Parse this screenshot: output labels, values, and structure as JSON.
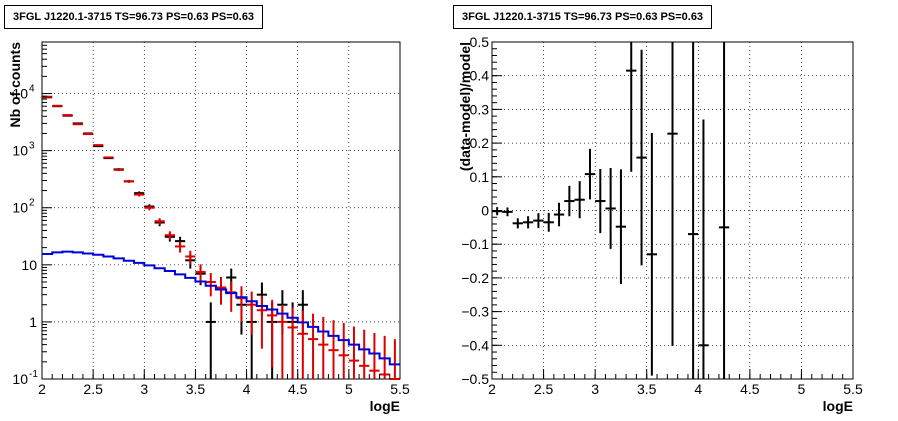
{
  "chart_data": [
    {
      "type": "scatter",
      "title": "3FGL J1220.1-3715 TS=96.73 PS=0.63 PS=0.63",
      "xlabel": "logE",
      "ylabel": "Nb of counts",
      "xlim": [
        2,
        5.5
      ],
      "ylim": [
        0.1,
        80000
      ],
      "yscale": "log",
      "grid": true,
      "x_ticks": [
        "2",
        "2.5",
        "3",
        "3.5",
        "4",
        "4.5",
        "5",
        "5.5"
      ],
      "y_ticks": [
        {
          "v": 0.1,
          "base": "10",
          "exp": "-1"
        },
        {
          "v": 1,
          "base": "1",
          "exp": ""
        },
        {
          "v": 10,
          "base": "10",
          "exp": ""
        },
        {
          "v": 100,
          "base": "10",
          "exp": "2"
        },
        {
          "v": 1000,
          "base": "10",
          "exp": "3"
        },
        {
          "v": 10000,
          "base": "10",
          "exp": "4"
        }
      ],
      "colors": {
        "data": "#000000",
        "model": "#dd0000",
        "background": "#0000dd"
      },
      "series": [
        {
          "style": "errorbar",
          "color": "#000000",
          "x": [
            2.05,
            2.15,
            2.25,
            2.35,
            2.45,
            2.55,
            2.65,
            2.75,
            2.85,
            2.95,
            3.05,
            3.15,
            3.25,
            3.35,
            3.45,
            3.55,
            3.65,
            3.75,
            3.85,
            3.95,
            4.05,
            4.15,
            4.25,
            4.35,
            4.45,
            4.55
          ],
          "y": [
            8600,
            6000,
            4100,
            3000,
            2000,
            1200,
            740,
            470,
            290,
            180,
            105,
            55,
            31,
            26,
            12,
            7,
            1,
            4,
            6,
            2,
            1,
            3,
            1,
            2,
            1,
            2
          ],
          "yerr_low": [
            90,
            80,
            65,
            55,
            45,
            35,
            27,
            22,
            17,
            13,
            10,
            7.5,
            5.5,
            5,
            3.4,
            2.6,
            0.9,
            1.9,
            2.4,
            1.4,
            0.9,
            1.7,
            0.9,
            1.4,
            0.9,
            1.4
          ],
          "yerr_high": [
            90,
            80,
            65,
            55,
            45,
            35,
            27,
            22,
            17,
            13,
            10,
            7.5,
            5.5,
            5,
            3.4,
            2.6,
            1.2,
            2.1,
            2.6,
            1.6,
            1.2,
            1.9,
            1.2,
            1.6,
            1.2,
            1.6
          ]
        },
        {
          "style": "errorbar",
          "color": "#dd0000",
          "x": [
            2.05,
            2.15,
            2.25,
            2.35,
            2.45,
            2.55,
            2.65,
            2.75,
            2.85,
            2.95,
            3.05,
            3.15,
            3.25,
            3.35,
            3.45,
            3.55,
            3.65,
            3.75,
            3.85,
            3.95,
            4.05,
            4.15,
            4.25,
            4.35,
            4.45,
            4.55,
            4.65,
            4.75,
            4.85,
            4.95,
            5.05,
            5.15,
            5.25,
            5.35,
            5.45
          ],
          "y": [
            8800,
            6100,
            4200,
            2900,
            1950,
            1250,
            760,
            460,
            290,
            170,
            100,
            58,
            33,
            21,
            14,
            7.5,
            5,
            4,
            3.3,
            2.6,
            2,
            1.6,
            1.3,
            1,
            0.8,
            0.62,
            0.5,
            0.4,
            0.32,
            0.26,
            0.21,
            0.17,
            0.14,
            0.12,
            0.1
          ],
          "yerr_low": [
            95,
            80,
            65,
            55,
            45,
            35,
            28,
            21,
            17,
            13,
            10,
            7.6,
            5.7,
            4.6,
            3.7,
            2.7,
            2.2,
            2,
            1.8,
            1.6,
            1.4,
            1.26,
            1.14,
            1,
            0.79,
            0.61,
            0.49,
            0.39,
            0.31,
            0.25,
            0.2,
            0.16,
            0.13,
            0.11,
            0.09
          ],
          "yerr_high": [
            95,
            80,
            65,
            55,
            45,
            35,
            28,
            21,
            17,
            13,
            10,
            7.6,
            5.7,
            4.6,
            3.7,
            2.7,
            2.2,
            2,
            1.8,
            1.6,
            1.4,
            1.26,
            1.14,
            1,
            1,
            0.95,
            0.9,
            0.82,
            0.75,
            0.7,
            0.62,
            0.56,
            0.5,
            0.45,
            0.4
          ]
        },
        {
          "style": "step",
          "color": "#0000dd",
          "x": [
            2.05,
            2.15,
            2.25,
            2.35,
            2.45,
            2.55,
            2.65,
            2.75,
            2.85,
            2.95,
            3.05,
            3.15,
            3.25,
            3.35,
            3.45,
            3.55,
            3.65,
            3.75,
            3.85,
            3.95,
            4.05,
            4.15,
            4.25,
            4.35,
            4.45,
            4.55,
            4.65,
            4.75,
            4.85,
            4.95,
            5.05,
            5.15,
            5.25,
            5.35,
            5.45
          ],
          "y": [
            15.5,
            16.5,
            17,
            16.5,
            15.8,
            15,
            14,
            13,
            11.8,
            10.8,
            9.8,
            8.7,
            7.8,
            6.8,
            5.9,
            5.1,
            4.3,
            3.7,
            3.2,
            2.7,
            2.3,
            1.9,
            1.65,
            1.4,
            1.18,
            0.98,
            0.82,
            0.68,
            0.57,
            0.48,
            0.4,
            0.33,
            0.28,
            0.23,
            0.18
          ]
        }
      ]
    },
    {
      "type": "scatter",
      "title": "3FGL J1220.1-3715 TS=96.73 PS=0.63 PS=0.63",
      "xlabel": "logE",
      "ylabel": "(data-model)/model",
      "xlim": [
        2,
        5.5
      ],
      "ylim": [
        -0.5,
        0.5
      ],
      "grid": true,
      "x_ticks": [
        "2",
        "2.5",
        "3",
        "3.5",
        "4",
        "4.5",
        "5",
        "5.5"
      ],
      "y_ticks": [
        "−0.5",
        "−0.4",
        "−0.3",
        "−0.2",
        "−0.1",
        "0",
        "0.1",
        "0.2",
        "0.3",
        "0.4",
        "0.5"
      ],
      "series": [
        {
          "style": "errorbar",
          "color": "#000000",
          "x": [
            2.05,
            2.15,
            2.25,
            2.35,
            2.45,
            2.55,
            2.65,
            2.75,
            2.85,
            2.95,
            3.05,
            3.15,
            3.25,
            3.35,
            3.45,
            3.55,
            3.75,
            3.95,
            4.05,
            4.25
          ],
          "y": [
            -0.002,
            -0.004,
            -0.038,
            -0.035,
            -0.03,
            -0.035,
            -0.012,
            0.028,
            0.032,
            0.108,
            0.028,
            0.006,
            -0.048,
            0.415,
            0.157,
            -0.13,
            0.228,
            -0.07,
            -0.4,
            -0.05
          ],
          "yerr": [
            0.012,
            0.013,
            0.015,
            0.018,
            0.022,
            0.028,
            0.035,
            0.045,
            0.055,
            0.075,
            0.095,
            0.12,
            0.17,
            0.3,
            0.32,
            0.36,
            0.63,
            0.8,
            0.67,
            0.8
          ]
        }
      ]
    }
  ]
}
